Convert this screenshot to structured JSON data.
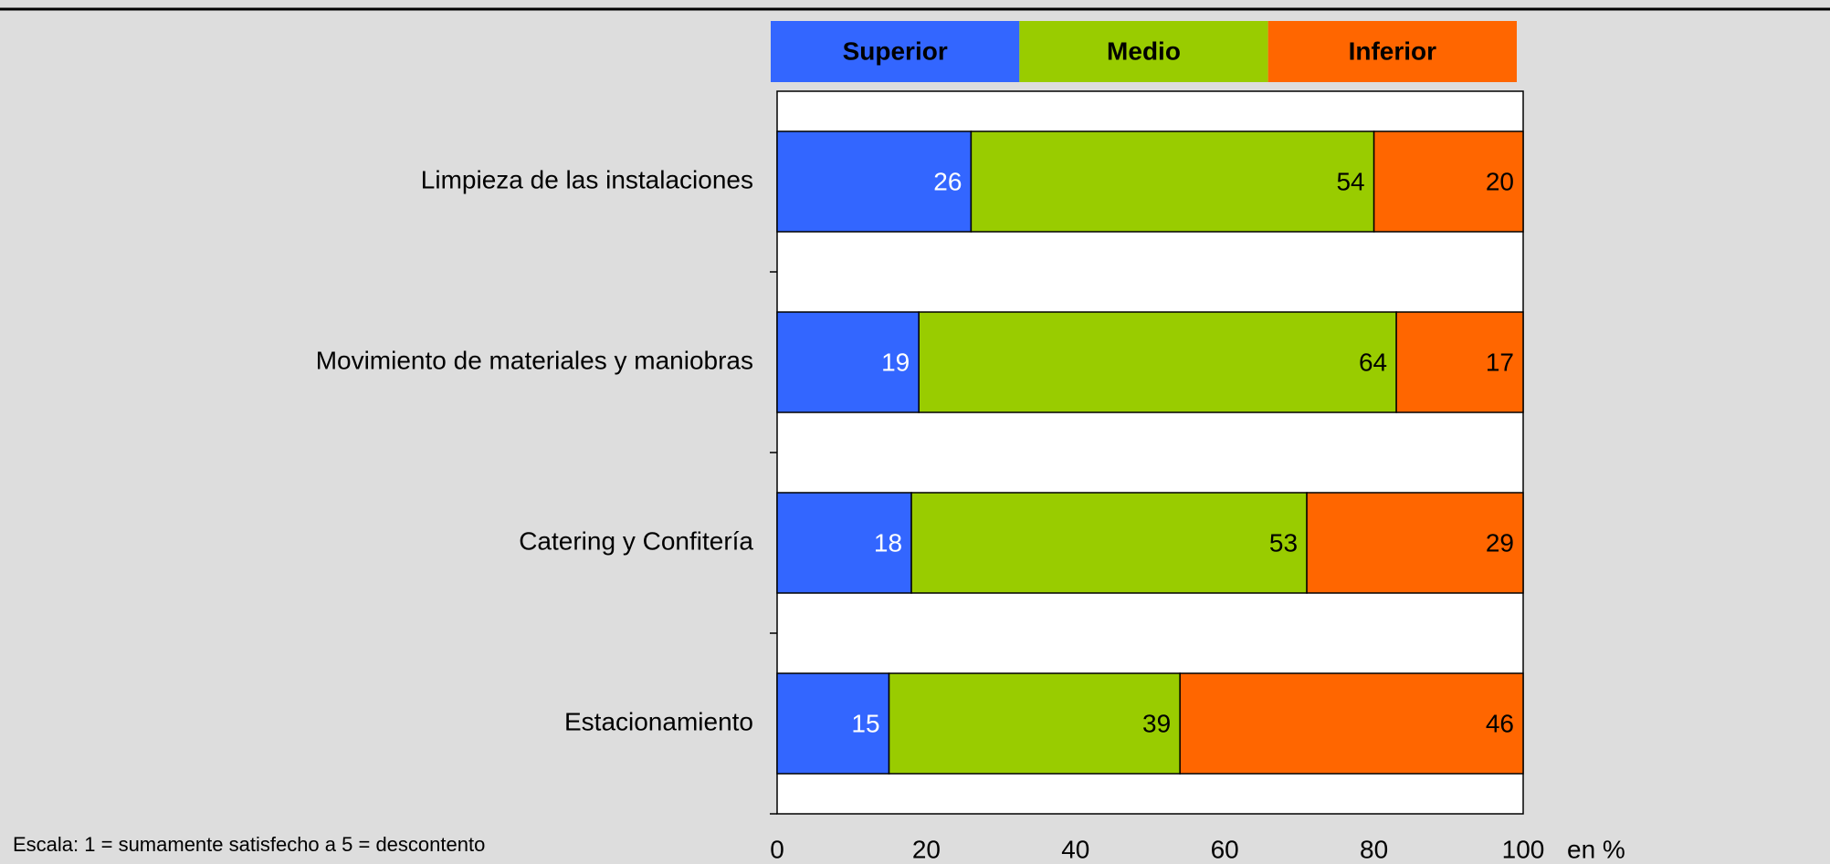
{
  "chart_data": {
    "type": "stacked_bar_horizontal",
    "categories": [
      "Limpieza de las instalaciones",
      "Movimiento de materiales y maniobras",
      "Catering y Confitería",
      "Estacionamiento"
    ],
    "series": [
      {
        "name": "Superior",
        "color": "#3366ff",
        "label_color": "#ffffff",
        "values": [
          26,
          19,
          18,
          15
        ]
      },
      {
        "name": "Medio",
        "color": "#99cc00",
        "label_color": "#000000",
        "values": [
          54,
          64,
          53,
          39
        ]
      },
      {
        "name": "Inferior",
        "color": "#ff6600",
        "label_color": "#000000",
        "values": [
          20,
          17,
          29,
          46
        ]
      }
    ],
    "xlim": [
      0,
      100
    ],
    "xticks": [
      0,
      20,
      40,
      60,
      80,
      100
    ],
    "x_label": "en %",
    "note": "Escala: 1 = sumamente satisfecho a 5 = descontento",
    "legend": "top"
  }
}
